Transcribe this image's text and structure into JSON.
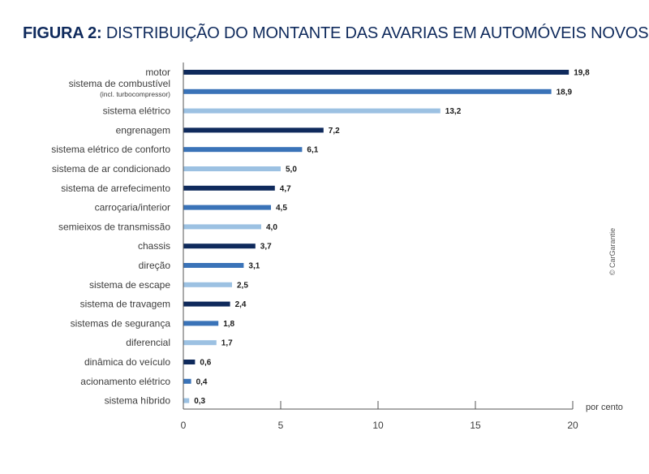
{
  "title": {
    "lead": "FIGURA 2:",
    "text": "DISTRIBUIÇÃO DO MONTANTE DAS AVARIAS EM AUTOMÓVEIS NOVOS"
  },
  "credit": "© CarGarantie",
  "colors": {
    "dark": "#0f2a5c",
    "medium": "#3a73b8",
    "light": "#9cc1e2",
    "axis": "#555555"
  },
  "chart_data": {
    "type": "bar",
    "orientation": "horizontal",
    "categories": [
      "motor",
      "sistema de combustível",
      "sistema elétrico",
      "engrenagem",
      "sistema elétrico de conforto",
      "sistema de ar condicionado",
      "sistema de arrefecimento",
      "carroçaria/interior",
      "semieixos de transmissão",
      "chassis",
      "direção",
      "sistema de escape",
      "sistema de travagem",
      "sistemas de segurança",
      "diferencial",
      "dinâmica do veículo",
      "acionamento elétrico",
      "sistema híbrido"
    ],
    "category_sublabels": {
      "1": "(incl. turbocompressor)"
    },
    "values": [
      19.8,
      18.9,
      13.2,
      7.2,
      6.1,
      5.0,
      4.7,
      4.5,
      4.0,
      3.7,
      3.1,
      2.5,
      2.4,
      1.8,
      1.7,
      0.6,
      0.4,
      0.3
    ],
    "value_labels": [
      "19,8",
      "18,9",
      "13,2",
      "7,2",
      "6,1",
      "5,0",
      "4,7",
      "4,5",
      "4,0",
      "3,7",
      "3,1",
      "2,5",
      "2,4",
      "1,8",
      "1,7",
      "0,6",
      "0,4",
      "0,3"
    ],
    "bar_colors": [
      "dark",
      "medium",
      "light",
      "dark",
      "medium",
      "light",
      "dark",
      "medium",
      "light",
      "dark",
      "medium",
      "light",
      "dark",
      "medium",
      "light",
      "dark",
      "medium",
      "light"
    ],
    "xticks": [
      0,
      5,
      10,
      15,
      20
    ],
    "xlim": [
      0,
      20
    ],
    "xlabel": "por cento",
    "title": "",
    "grid": false
  }
}
